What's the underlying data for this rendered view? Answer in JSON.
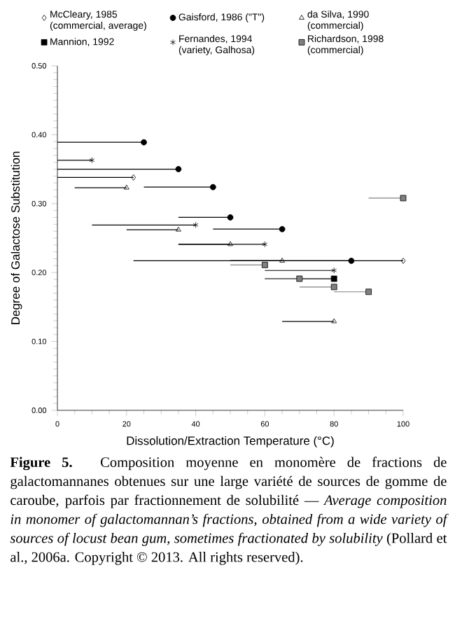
{
  "chart_data": {
    "type": "scatter",
    "xlabel": "Dissolution/Extraction Temperature (°C)",
    "ylabel": "Degree of Galactose Substitution",
    "xlim": [
      0,
      100
    ],
    "ylim": [
      0,
      0.5
    ],
    "xticks": [
      0,
      20,
      40,
      60,
      80,
      100
    ],
    "yticks": [
      {
        "value": 0,
        "label": "0.00"
      },
      {
        "value": 0.1,
        "label": "0.10"
      },
      {
        "value": 0.2,
        "label": "0.20"
      },
      {
        "value": 0.3,
        "label": "0.30"
      },
      {
        "value": 0.4,
        "label": "0.40"
      },
      {
        "value": 0.5,
        "label": "0.50"
      }
    ],
    "grid": false,
    "legend": "top",
    "series": [
      {
        "name": "McCleary, 1985 (commercial, average)",
        "color": "#000000",
        "marker": "diamond",
        "x": [
          22,
          100
        ],
        "values": [
          0.338,
          0.217
        ],
        "xerrors": [
          [
            0,
            22
          ],
          [
            22,
            100
          ]
        ]
      },
      {
        "name": "Gaisford, 1986 (\"T\")",
        "color": "#000000",
        "marker": "circle",
        "x": [
          25,
          35,
          45,
          50,
          65,
          85
        ],
        "values": [
          0.389,
          0.35,
          0.324,
          0.28,
          0.263,
          0.217
        ],
        "xerrors": [
          [
            0,
            25
          ],
          [
            0,
            35
          ],
          [
            25,
            45
          ],
          [
            35,
            50
          ],
          [
            45,
            65
          ],
          [
            50,
            85
          ]
        ]
      },
      {
        "name": "da Silva, 1990 (commercial)",
        "color": "#000000",
        "marker": "triangle",
        "x": [
          20,
          35,
          50,
          65,
          80
        ],
        "values": [
          0.323,
          0.262,
          0.241,
          0.217,
          0.129
        ],
        "xerrors": [
          [
            5,
            20
          ],
          [
            20,
            35
          ],
          [
            35,
            50
          ],
          [
            50,
            65
          ],
          [
            65,
            80
          ]
        ]
      },
      {
        "name": "Mannion, 1992",
        "color": "#000000",
        "marker": "square",
        "x": [
          80
        ],
        "values": [
          0.191
        ],
        "xerrors": [
          [
            60,
            80
          ]
        ]
      },
      {
        "name": "Fernandes, 1994 (variety, Galhosa)",
        "color": "#000000",
        "marker": "cross",
        "x": [
          10,
          40,
          60,
          80
        ],
        "values": [
          0.363,
          0.269,
          0.241,
          0.203
        ],
        "xerrors": [
          [
            0,
            10
          ],
          [
            10,
            40
          ],
          [
            35,
            60
          ],
          [
            60,
            80
          ]
        ]
      },
      {
        "name": "Richardson, 1998 (commercial)",
        "color": "#808080",
        "marker": "square",
        "x": [
          100,
          60,
          70,
          80,
          90
        ],
        "values": [
          0.308,
          0.211,
          0.191,
          0.179,
          0.172
        ],
        "xerrors": [
          [
            90,
            100
          ],
          [
            50,
            60
          ],
          [
            60,
            70
          ],
          [
            70,
            80
          ],
          [
            80,
            90
          ]
        ]
      }
    ],
    "annotations": [
      "**Figure 5.** Composition moyenne en monomère de fractions de galactomannanes obtenues sur une large variété de sources de gomme de caroube, parfois par fractionnement de solubilité — *Average composition in monomer of galactomannan’s fractions, obtained from a wide variety of sources of locust bean gum, sometimes fractionated by solubility* (Pollard et al., 2006a. Copyright © 2013. All rights reserved)."
    ]
  }
}
